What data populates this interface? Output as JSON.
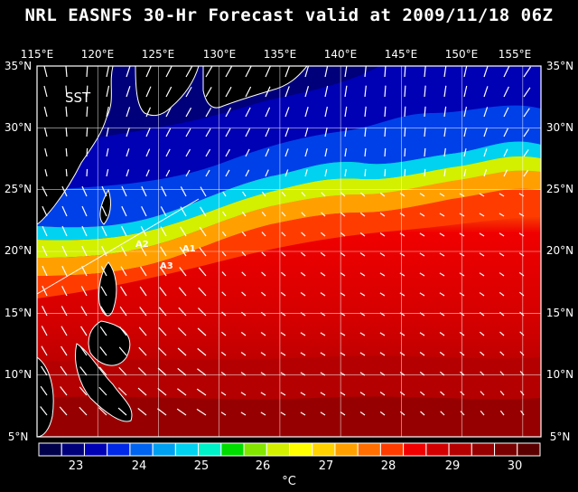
{
  "title": "NRL EASNFS  30-Hr Forecast valid at 2009/11/18 06Z",
  "map": {
    "variable_label": "SST",
    "lon_labels": [
      "115°E",
      "120°E",
      "125°E",
      "130°E",
      "135°E",
      "140°E",
      "145°E",
      "150°E",
      "155°E"
    ],
    "lat_labels_left": [
      "35°N",
      "30°N",
      "25°N",
      "20°N",
      "15°N",
      "10°N",
      "5°N"
    ],
    "lat_labels_right": [
      "35°N",
      "30°N",
      "25°N",
      "20°N",
      "15°N",
      "10°N",
      "5°N"
    ],
    "station_labels": [
      "A2",
      "A1",
      "A3"
    ]
  },
  "colorbar": {
    "tick_labels": [
      "23",
      "24",
      "25",
      "26",
      "27",
      "28",
      "29",
      "30"
    ],
    "unit": "°C",
    "colors": [
      "#00004a",
      "#00007a",
      "#0000b4",
      "#0028e6",
      "#0064f0",
      "#00a0f0",
      "#00d2f0",
      "#00f0c8",
      "#00dc00",
      "#82e600",
      "#d2f000",
      "#ffff00",
      "#ffd200",
      "#ffa000",
      "#ff6e00",
      "#ff3c00",
      "#f00000",
      "#d20000",
      "#b40000",
      "#960000",
      "#780000",
      "#5a0000"
    ]
  }
}
